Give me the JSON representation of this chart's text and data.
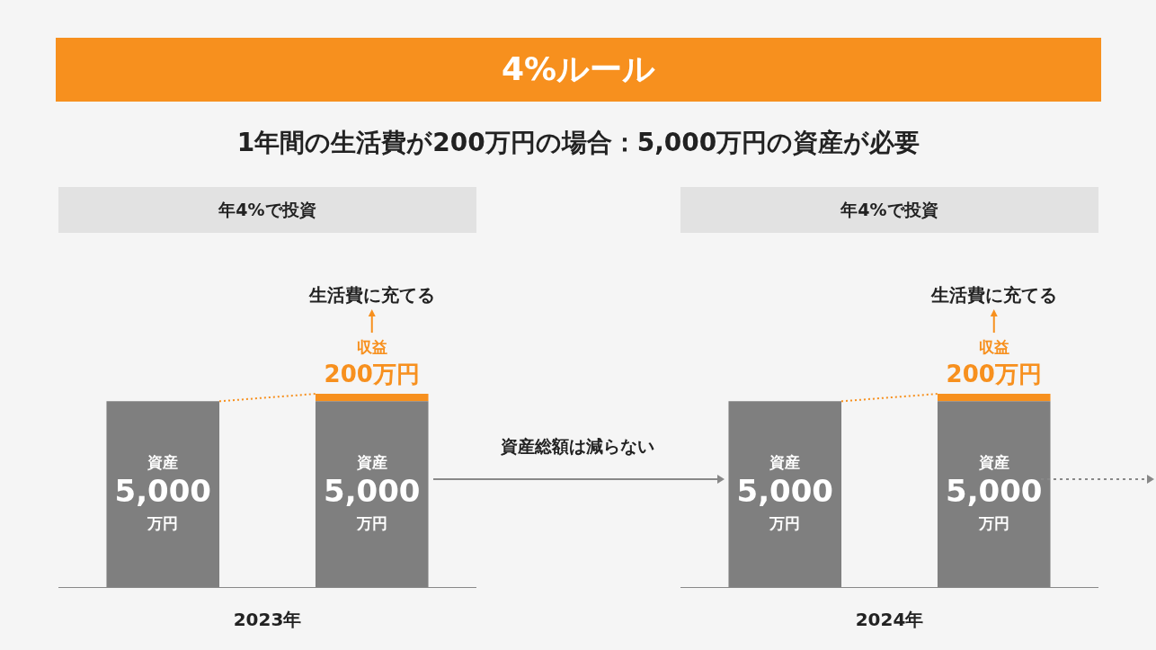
{
  "chart_data": [
    {
      "type": "other",
      "title": "4%ルール",
      "subtitle": "1年間の生活費が200万円の場合：5,000万円の資産が必要"
    },
    {
      "type": "bar",
      "title": "年4%で投資",
      "xlabel": "2023年",
      "categories": [
        null,
        null
      ],
      "stacked": true,
      "tick_labels": false,
      "annotations": [
        "生活費に充てる",
        "資産総額は減らない"
      ],
      "series": [
        {
          "color": "#7f7f7f",
          "values": [
            5000,
            5000
          ],
          "value_labels": [
            "資産\n5,000\n万円",
            "資産\n5,000\n万円"
          ]
        },
        {
          "color": "#f7901e",
          "values": [
            null,
            200
          ],
          "value_labels": [
            null,
            "収益\n200万円"
          ]
        }
      ]
    },
    {
      "type": "bar",
      "title": "年4%で投資",
      "xlabel": "2024年",
      "categories": [
        null,
        null
      ],
      "stacked": true,
      "tick_labels": false,
      "annotations": [
        "生活費に充てる"
      ],
      "series": [
        {
          "color": "#7f7f7f",
          "values": [
            5000,
            5000
          ],
          "value_labels": [
            "資産\n5,000\n万円",
            "資産\n5,000\n万円"
          ]
        },
        {
          "color": "#f7901e",
          "values": [
            null,
            200
          ],
          "value_labels": [
            null,
            "収益\n200万円"
          ]
        }
      ]
    }
  ]
}
